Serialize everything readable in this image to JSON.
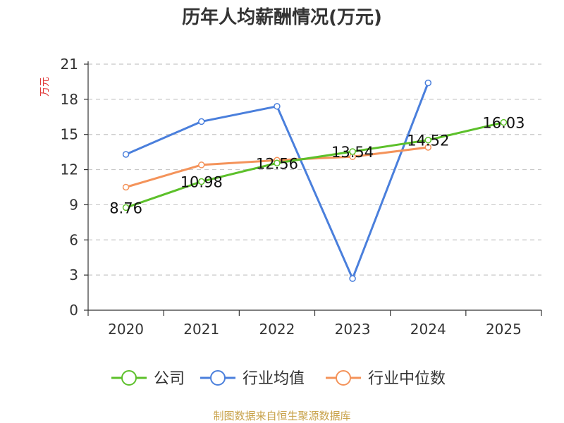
{
  "chart_data": {
    "type": "line",
    "title": "历年人均薪酬情况(万元)",
    "ylabel": "万元",
    "xlabel": "",
    "categories": [
      "2020",
      "2021",
      "2022",
      "2023",
      "2024",
      "2025"
    ],
    "ylim": [
      0,
      21
    ],
    "yticks": [
      0,
      3,
      6,
      9,
      12,
      15,
      18,
      21
    ],
    "grid": true,
    "legend_position": "bottom",
    "series": [
      {
        "name": "公司",
        "color": "#5cc02a",
        "values": [
          8.76,
          10.98,
          12.56,
          13.54,
          14.52,
          16.03
        ],
        "labels": [
          "8.76",
          "10.98",
          "12.56",
          "13.54",
          "14.52",
          "16.03"
        ]
      },
      {
        "name": "行业均值",
        "color": "#4a7fdc",
        "values": [
          13.3,
          16.1,
          17.4,
          2.7,
          19.4,
          null
        ]
      },
      {
        "name": "行业中位数",
        "color": "#f4935a",
        "values": [
          10.5,
          12.4,
          12.8,
          13.1,
          13.9,
          null
        ]
      }
    ]
  },
  "source_text": "制图数据来自恒生聚源数据库"
}
